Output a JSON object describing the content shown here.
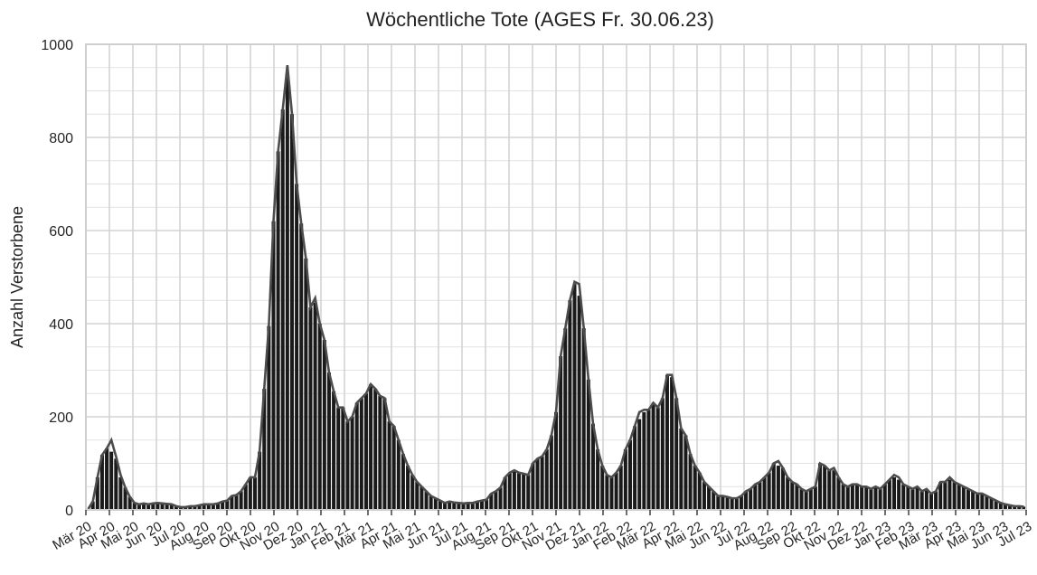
{
  "chart_data": {
    "type": "bar",
    "title": "Wöchentliche Tote (AGES Fr. 30.06.23)",
    "ylabel": "Anzahl Verstorbene",
    "xlabel": "",
    "ylim": [
      0,
      1000
    ],
    "yticks": [
      0,
      200,
      400,
      600,
      800,
      1000
    ],
    "grid": true,
    "month_labels": [
      "Mär 20",
      "Apr 20",
      "Mai 20",
      "Jun 20",
      "Jul 20",
      "Aug 20",
      "Sep 20",
      "Okt 20",
      "Nov 20",
      "Dez 20",
      "Jan 21",
      "Feb 21",
      "Mär 21",
      "Apr 21",
      "Mai 21",
      "Jun 21",
      "Jul 21",
      "Aug 21",
      "Sep 21",
      "Okt 21",
      "Nov 21",
      "Dez 21",
      "Jan 22",
      "Feb 22",
      "Mär 22",
      "Apr 22",
      "Mai 22",
      "Jun 22",
      "Jul 22",
      "Aug 22",
      "Sep 22",
      "Okt 22",
      "Nov 22",
      "Dez 22",
      "Jan 23",
      "Feb 23",
      "Mär 23",
      "Apr 23",
      "Mai 23",
      "Jun 23",
      "Jul 23"
    ],
    "series": [
      {
        "kind": "bar",
        "color": "#1a1a1a",
        "values": [
          2,
          18,
          70,
          118,
          132,
          125,
          110,
          70,
          48,
          28,
          15,
          12,
          14,
          12,
          14,
          15,
          14,
          13,
          12,
          8,
          6,
          6,
          8,
          8,
          10,
          12,
          12,
          12,
          14,
          18,
          20,
          30,
          32,
          40,
          55,
          70,
          70,
          125,
          260,
          395,
          620,
          770,
          860,
          930,
          850,
          700,
          615,
          540,
          435,
          445,
          400,
          365,
          295,
          255,
          220,
          220,
          190,
          200,
          230,
          240,
          250,
          270,
          260,
          245,
          240,
          190,
          180,
          150,
          120,
          95,
          75,
          60,
          50,
          40,
          30,
          25,
          20,
          15,
          18,
          16,
          15,
          14,
          15,
          15,
          18,
          20,
          22,
          35,
          40,
          48,
          70,
          80,
          85,
          80,
          78,
          75,
          100,
          110,
          115,
          130,
          160,
          210,
          330,
          390,
          450,
          485,
          460,
          390,
          280,
          185,
          130,
          95,
          75,
          70,
          80,
          95,
          130,
          150,
          180,
          195,
          210,
          215,
          230,
          220,
          240,
          290,
          285,
          240,
          175,
          160,
          120,
          95,
          80,
          60,
          50,
          40,
          30,
          30,
          28,
          25,
          25,
          30,
          40,
          45,
          55,
          60,
          70,
          80,
          100,
          95,
          90,
          70,
          60,
          55,
          45,
          40,
          45,
          50,
          100,
          95,
          85,
          85,
          70,
          55,
          50,
          55,
          55,
          50,
          50,
          45,
          50,
          45,
          55,
          65,
          70,
          65,
          55,
          50,
          45,
          50,
          40,
          45,
          35,
          40,
          60,
          60,
          65,
          60,
          55,
          50,
          45,
          40,
          35,
          35,
          30,
          25,
          20,
          15,
          12,
          10,
          8,
          8,
          7
        ]
      },
      {
        "kind": "line",
        "color": "#4d4d4d",
        "values": [
          2,
          18,
          70,
          118,
          132,
          150,
          115,
          75,
          48,
          28,
          15,
          12,
          14,
          12,
          14,
          15,
          14,
          13,
          12,
          8,
          6,
          6,
          8,
          8,
          10,
          12,
          12,
          12,
          14,
          18,
          20,
          30,
          32,
          40,
          55,
          70,
          70,
          125,
          260,
          395,
          620,
          770,
          860,
          955,
          850,
          700,
          615,
          540,
          435,
          455,
          400,
          365,
          295,
          255,
          220,
          220,
          190,
          200,
          230,
          240,
          250,
          270,
          260,
          245,
          240,
          190,
          180,
          150,
          120,
          95,
          75,
          60,
          50,
          40,
          30,
          25,
          20,
          15,
          18,
          16,
          15,
          14,
          15,
          15,
          18,
          20,
          22,
          35,
          40,
          48,
          70,
          80,
          85,
          80,
          78,
          75,
          100,
          110,
          115,
          130,
          160,
          210,
          330,
          390,
          450,
          490,
          485,
          390,
          280,
          185,
          130,
          95,
          75,
          70,
          80,
          95,
          130,
          150,
          180,
          210,
          215,
          215,
          230,
          220,
          240,
          290,
          290,
          240,
          175,
          160,
          120,
          95,
          80,
          60,
          50,
          40,
          30,
          30,
          28,
          25,
          25,
          30,
          40,
          45,
          55,
          60,
          70,
          80,
          100,
          105,
          90,
          70,
          60,
          55,
          45,
          40,
          45,
          50,
          100,
          95,
          85,
          90,
          70,
          55,
          50,
          55,
          55,
          50,
          50,
          45,
          50,
          45,
          55,
          65,
          75,
          70,
          55,
          50,
          45,
          50,
          40,
          45,
          35,
          40,
          60,
          60,
          70,
          60,
          55,
          50,
          45,
          40,
          35,
          35,
          30,
          25,
          20,
          15,
          12,
          10,
          8,
          8,
          7
        ]
      }
    ]
  }
}
